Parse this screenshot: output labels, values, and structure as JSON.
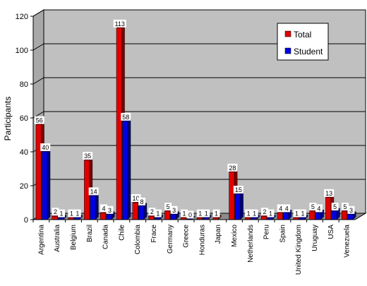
{
  "chart_data": {
    "type": "bar",
    "ylabel": "Participants",
    "ylim": [
      0,
      120
    ],
    "yticks": [
      0,
      20,
      40,
      60,
      80,
      100,
      120
    ],
    "grid": true,
    "legend_position": "top-right",
    "categories": [
      "Argentina",
      "Australia",
      "Belgium",
      "Brazil",
      "Canada",
      "Chile",
      "Colombia",
      "Frace",
      "Germany",
      "Greece",
      "Honduras",
      "Japan",
      "Mexico",
      "Netherlands",
      "Peru",
      "Spain",
      "United Kingdom",
      "Uruguay",
      "USA",
      "Venezuela"
    ],
    "series": [
      {
        "name": "Total",
        "color": "#e00000",
        "values": [
          56,
          2,
          1,
          35,
          4,
          113,
          10,
          2,
          5,
          1,
          1,
          1,
          28,
          1,
          2,
          4,
          1,
          5,
          13,
          5
        ]
      },
      {
        "name": "Student",
        "color": "#0000e0",
        "values": [
          40,
          1,
          1,
          14,
          3,
          58,
          8,
          1,
          3,
          0,
          1,
          null,
          15,
          1,
          1,
          4,
          1,
          4,
          5,
          3
        ]
      }
    ]
  }
}
